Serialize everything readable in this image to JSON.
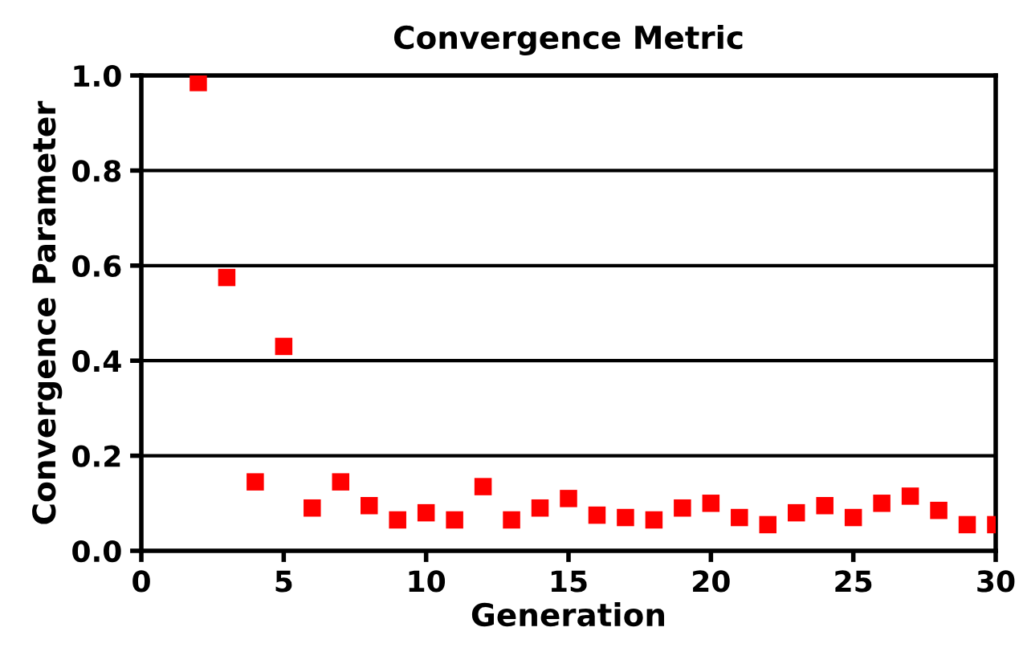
{
  "chart_data": {
    "type": "scatter",
    "title": "Convergence Metric",
    "xlabel": "Generation",
    "ylabel": "Convergence Parameter",
    "x": [
      2,
      3,
      4,
      5,
      6,
      7,
      8,
      9,
      10,
      11,
      12,
      13,
      14,
      15,
      16,
      17,
      18,
      19,
      20,
      21,
      22,
      23,
      24,
      25,
      26,
      27,
      28,
      29,
      30
    ],
    "series": [
      {
        "color": "#ff0000",
        "values": [
          0.985,
          0.575,
          0.145,
          0.43,
          0.09,
          0.145,
          0.095,
          0.065,
          0.08,
          0.065,
          0.135,
          0.065,
          0.09,
          0.11,
          0.075,
          0.07,
          0.065,
          0.09,
          0.1,
          0.07,
          0.055,
          0.08,
          0.095,
          0.07,
          0.1,
          0.115,
          0.085,
          0.055,
          0.055
        ]
      }
    ],
    "xlim": [
      0,
      30
    ],
    "xticks": [
      0,
      5,
      10,
      15,
      20,
      25,
      30
    ],
    "ylim": [
      0,
      1.0
    ],
    "yticks": [
      {
        "value": 0,
        "label": "0.0"
      },
      {
        "value": 0.2,
        "label": "0.2"
      },
      {
        "value": 0.4,
        "label": "0.4"
      },
      {
        "value": 0.6,
        "label": "0.6"
      },
      {
        "value": 0.8,
        "label": "0.8"
      },
      {
        "value": 1.0,
        "label": "1.0"
      }
    ],
    "grid": "y",
    "marker": "square",
    "legend": false
  }
}
